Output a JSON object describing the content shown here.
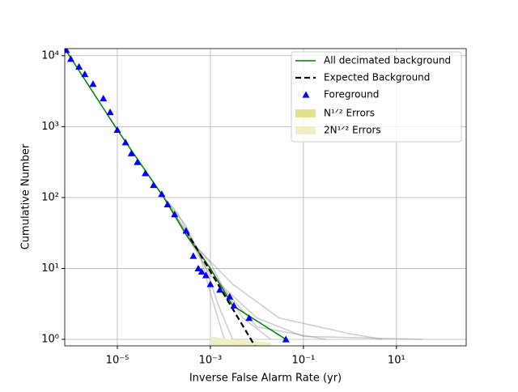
{
  "chart_data": {
    "type": "line",
    "xlabel": "Inverse False Alarm Rate (yr)",
    "ylabel": "Cumulative Number",
    "xlog": true,
    "ylog": true,
    "grid": true,
    "legend": "upper right",
    "xlim": [
      7.4e-07,
      316
    ],
    "ylim": [
      0.81,
      12600
    ],
    "xticks": [
      {
        "value": 1e-05,
        "label": "10⁻⁵"
      },
      {
        "value": 0.001,
        "label": "10⁻³"
      },
      {
        "value": 0.1,
        "label": "10⁻¹"
      },
      {
        "value": 10,
        "label": "10¹"
      }
    ],
    "yticks": [
      {
        "value": 1,
        "label": "10⁰"
      },
      {
        "value": 10,
        "label": "10¹"
      },
      {
        "value": 100,
        "label": "10²"
      },
      {
        "value": 1000,
        "label": "10³"
      },
      {
        "value": 10000,
        "label": "10⁴"
      }
    ],
    "series": [
      {
        "color": "#999999",
        "style": "trial",
        "x": [
          0.0001,
          0.0003,
          0.001,
          0.01,
          0.1,
          36
        ],
        "values": [
          100,
          30,
          8,
          2,
          1.1,
          1
        ]
      },
      {
        "color": "#999999",
        "style": "trial",
        "x": [
          0.0001,
          0.0004,
          0.002,
          0.005,
          0.02
        ],
        "values": [
          100,
          25,
          5,
          2,
          1
        ]
      },
      {
        "color": "#999999",
        "style": "trial",
        "x": [
          0.0001,
          0.0003,
          0.0008,
          0.0015,
          0.003
        ],
        "values": [
          100,
          40,
          10,
          3,
          1
        ]
      },
      {
        "color": "#999999",
        "style": "trial",
        "x": [
          0.0001,
          0.0005,
          0.003,
          0.03,
          1,
          5
        ],
        "values": [
          100,
          20,
          6,
          2,
          1.2,
          1
        ]
      },
      {
        "color": "#999999",
        "style": "trial",
        "x": [
          0.0001,
          0.0003,
          0.001,
          0.002,
          0.01,
          0.3
        ],
        "values": [
          100,
          30,
          12,
          5,
          1.5,
          1
        ]
      },
      {
        "color": "#999999",
        "style": "trial",
        "x": [
          0.0001,
          0.0002,
          0.0006,
          0.0012,
          0.002
        ],
        "values": [
          100,
          60,
          15,
          3,
          1
        ]
      },
      {
        "name": "All decimated background",
        "color": "green",
        "style": "solid",
        "x": [
          7.4e-07,
          1e-05,
          0.0001,
          0.0003,
          0.001,
          0.003,
          0.042
        ],
        "values": [
          12600,
          900,
          100,
          30,
          10,
          3,
          1
        ]
      },
      {
        "name": "Expected Background",
        "color": "black",
        "style": "dashed",
        "x": [
          0.0003,
          0.009
        ],
        "values": [
          34,
          0.81
        ]
      },
      {
        "name": "Foreground",
        "color": "blue",
        "style": "triangle",
        "x": [
          8e-07,
          1e-06,
          1.5e-06,
          2e-06,
          3e-06,
          5e-06,
          7e-06,
          1e-05,
          1.5e-05,
          2e-05,
          2.7e-05,
          4e-05,
          6e-05,
          9e-05,
          0.00012,
          0.00017,
          0.0003,
          0.00043,
          0.00055,
          0.00065,
          0.0008,
          0.001,
          0.0016,
          0.0026,
          0.0032,
          0.0068,
          0.042
        ],
        "values": [
          12000,
          9000,
          7000,
          5500,
          4000,
          2500,
          1600,
          900,
          600,
          420,
          316,
          220,
          150,
          112,
          80,
          58,
          34,
          15,
          10,
          9,
          8,
          6,
          5,
          4,
          3,
          2,
          1
        ]
      },
      {
        "name": "N¹ᐟ² Errors",
        "color": "#e2e28c",
        "style": "band",
        "x": [
          0.0015,
          0.003,
          0.006,
          0.012
        ],
        "upper": [
          1.0,
          0.95,
          0.9,
          0.85
        ],
        "lower": [
          0.81,
          0.81,
          0.81,
          0.81
        ]
      },
      {
        "name": "2N¹ᐟ² Errors",
        "color": "#efefc6",
        "style": "band",
        "x": [
          0.001,
          0.003,
          0.008,
          0.02
        ],
        "upper": [
          1.1,
          1.0,
          0.95,
          0.9
        ],
        "lower": [
          0.81,
          0.81,
          0.81,
          0.81
        ]
      }
    ]
  }
}
